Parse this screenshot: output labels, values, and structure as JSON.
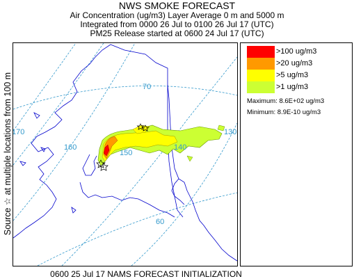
{
  "header": {
    "title": "NWS SMOKE FORECAST",
    "line2": "Air Concentration (ug/m3) Layer Average    0 m and  5000 m",
    "line3": "Integrated from 0000 26 Jul to 0100 26 Jul 17 (UTC)",
    "line4": "PM25 Release started at 0600 24 Jul 17 (UTC)"
  },
  "side_label": "Source ☆   at multiple locations   from   100 m",
  "map": {
    "grid_labels": {
      "lon_170": "170",
      "lon_160": "160",
      "lat_70": "70",
      "lat_150": "150",
      "lon_140": "140",
      "lon_130": "130",
      "lat_60": "60"
    }
  },
  "legend": {
    "items": [
      {
        "label": ">100 ug/m3",
        "color": "#ff0000"
      },
      {
        "label": ">20 ug/m3",
        "color": "#ff9900"
      },
      {
        "label": ">5 ug/m3",
        "color": "#ffff00"
      },
      {
        "label": ">1 ug/m3",
        "color": "#ccff33"
      }
    ],
    "maximum": "Maximum:  8.6E+02 ug/m3",
    "minimum": "Minimum:  8.9E-10 ug/m3"
  },
  "footer": "0600 25 Jul 17 NAMS FORECAST INITIALIZATION",
  "colors": {
    "grid": "#3399cc",
    "coast": "#0000cc",
    "star": "#000000"
  }
}
